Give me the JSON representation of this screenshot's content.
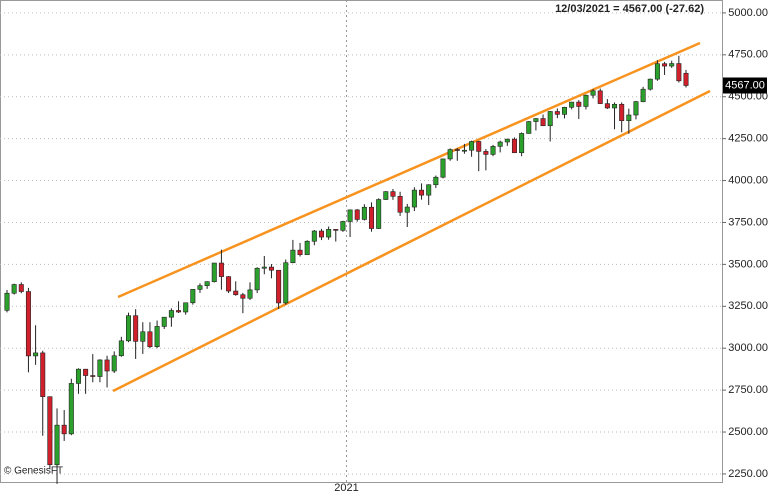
{
  "chart_data": {
    "type": "candlestick",
    "header": "12/03/2021 = 4567.00 (-27.62)",
    "last_label": "4567.00",
    "watermark": "© GenesisFT",
    "categories": [
      null,
      null,
      null,
      null,
      null,
      null,
      null,
      null,
      null,
      null,
      null,
      null,
      null,
      null,
      null,
      null,
      null,
      null,
      null,
      null,
      null,
      null,
      null,
      null,
      null,
      null,
      null,
      null,
      null,
      null,
      null,
      null,
      null,
      null,
      null,
      null,
      null,
      null,
      null,
      null,
      null,
      null,
      null,
      null,
      null,
      null,
      null,
      null,
      "2021",
      null,
      null,
      null,
      null,
      null,
      null,
      null,
      null,
      null,
      null,
      null,
      null,
      null,
      null,
      null,
      null,
      null,
      null,
      null,
      null,
      null,
      null,
      null,
      null,
      null,
      null,
      null,
      null,
      null,
      null,
      null,
      null,
      null,
      null,
      null,
      null,
      null,
      null,
      null,
      null,
      null,
      null,
      null,
      null,
      null,
      null,
      null
    ],
    "open": [
      3226,
      3328,
      3380,
      3338,
      2954,
      2972,
      2711,
      2305,
      2541,
      2489,
      2790,
      2875,
      2837,
      2831,
      2930,
      2864,
      2955,
      3044,
      3194,
      3041,
      3098,
      3009,
      3130,
      3185,
      3225,
      3216,
      3271,
      3351,
      3373,
      3397,
      3508,
      3427,
      3341,
      3319,
      3298,
      3348,
      3477,
      3484,
      3465,
      3270,
      3510,
      3585,
      3558,
      3638,
      3699,
      3663,
      3709,
      3703,
      3756,
      3825,
      3768,
      3841,
      3714,
      3887,
      3934,
      3906,
      3811,
      3842,
      3943,
      3913,
      3975,
      4020,
      4129,
      4185,
      4180,
      4181,
      4233,
      4174,
      4156,
      4204,
      4230,
      4247,
      4166,
      4281,
      4352,
      4370,
      4327,
      4412,
      4395,
      4437,
      4468,
      4442,
      4509,
      4535,
      4459,
      4433,
      4455,
      4357,
      4391,
      4471,
      4545,
      4605,
      4697,
      4683,
      4698,
      4640
    ],
    "high": [
      3347,
      3385,
      3393,
      3360,
      3137,
      2985,
      2711,
      2641,
      2631,
      2818,
      2880,
      2869,
      2965,
      2934,
      2955,
      2981,
      3068,
      3212,
      3233,
      3155,
      3155,
      3165,
      3186,
      3238,
      3280,
      3272,
      3352,
      3387,
      3399,
      3509,
      3588,
      3430,
      3399,
      3330,
      3393,
      3483,
      3550,
      3502,
      3465,
      3529,
      3646,
      3628,
      3644,
      3705,
      3712,
      3726,
      3711,
      3760,
      3827,
      3830,
      3859,
      3870,
      3894,
      3937,
      3950,
      3933,
      3861,
      3960,
      3983,
      3978,
      4030,
      4131,
      4192,
      4194,
      4219,
      4238,
      4237,
      4188,
      4213,
      4238,
      4250,
      4257,
      4287,
      4355,
      4372,
      4394,
      4415,
      4430,
      4440,
      4469,
      4480,
      4513,
      4546,
      4549,
      4486,
      4466,
      4466,
      4429,
      4475,
      4559,
      4608,
      4718,
      4708,
      4715,
      4744,
      4660
    ],
    "low": [
      3214,
      3320,
      3328,
      2856,
      2901,
      2478,
      2280,
      2191,
      2447,
      2481,
      2728,
      2728,
      2797,
      2797,
      2766,
      2852,
      2949,
      3036,
      2936,
      2966,
      3000,
      3000,
      3115,
      3128,
      3210,
      3200,
      3260,
      3330,
      3354,
      3392,
      3349,
      3329,
      3313,
      3209,
      3288,
      3329,
      3441,
      3417,
      3234,
      3260,
      3507,
      3547,
      3557,
      3614,
      3645,
      3647,
      3636,
      3694,
      3663,
      3755,
      3762,
      3695,
      3711,
      3884,
      3885,
      3789,
      3723,
      3818,
      3886,
      3854,
      3955,
      4013,
      4118,
      4118,
      4160,
      4142,
      4056,
      4061,
      4145,
      4168,
      4207,
      4165,
      4145,
      4280,
      4299,
      4325,
      4233,
      4372,
      4371,
      4425,
      4367,
      4424,
      4490,
      4457,
      4427,
      4306,
      4288,
      4279,
      4365,
      4467,
      4537,
      4595,
      4630,
      4672,
      4585,
      4555
    ],
    "close": [
      3328,
      3380,
      3338,
      2954,
      2972,
      2711,
      2305,
      2541,
      2489,
      2790,
      2875,
      2837,
      2831,
      2930,
      2864,
      2955,
      3044,
      3194,
      3041,
      3098,
      3009,
      3130,
      3185,
      3225,
      3216,
      3271,
      3351,
      3373,
      3397,
      3508,
      3427,
      3341,
      3319,
      3298,
      3348,
      3477,
      3484,
      3465,
      3270,
      3510,
      3585,
      3558,
      3638,
      3699,
      3663,
      3709,
      3703,
      3756,
      3825,
      3768,
      3841,
      3714,
      3887,
      3934,
      3906,
      3811,
      3842,
      3943,
      3913,
      3975,
      4020,
      4129,
      4185,
      4180,
      4181,
      4233,
      4174,
      4156,
      4204,
      4230,
      4247,
      4166,
      4281,
      4352,
      4370,
      4327,
      4412,
      4395,
      4437,
      4468,
      4442,
      4509,
      4535,
      4459,
      4433,
      4455,
      4357,
      4391,
      4471,
      4545,
      4605,
      4697,
      4683,
      4698,
      4595,
      4567
    ],
    "up_color": "#2ca02c",
    "down_color": "#d0202c",
    "ylim": [
      2196,
      5077
    ],
    "yticks": [
      {
        "value": 2250,
        "label": "2250.00"
      },
      {
        "value": 2500,
        "label": "2500.00"
      },
      {
        "value": 2750,
        "label": "2750.00"
      },
      {
        "value": 3000,
        "label": "3000.00"
      },
      {
        "value": 3250,
        "label": "3250.00"
      },
      {
        "value": 3500,
        "label": "3500.00"
      },
      {
        "value": 3750,
        "label": "3750.00"
      },
      {
        "value": 4000,
        "label": "4000.00"
      },
      {
        "value": 4250,
        "label": "4250.00"
      },
      {
        "value": 4500,
        "label": "4500.00"
      },
      {
        "value": 4750,
        "label": "4750.00"
      },
      {
        "value": 5000,
        "label": "5000.00"
      }
    ],
    "grid": true
  }
}
